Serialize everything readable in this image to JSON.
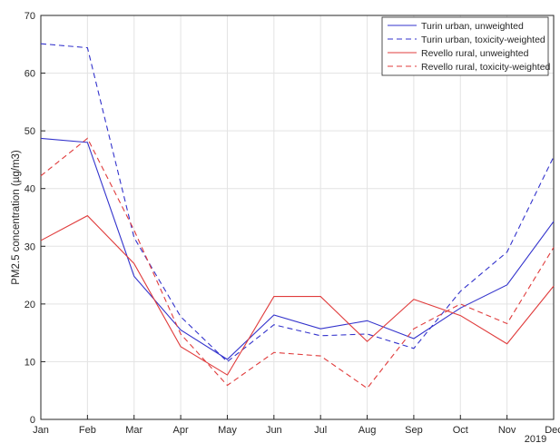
{
  "chart_data": {
    "type": "line",
    "categories": [
      "Jan",
      "Feb",
      "Mar",
      "Apr",
      "May",
      "Jun",
      "Jul",
      "Aug",
      "Sep",
      "Oct",
      "Nov",
      "Dec"
    ],
    "year_label": "2019",
    "ylabel": "PM2.5 concentration (µg/m3)",
    "xlabel": "",
    "ylim": [
      0,
      70
    ],
    "yticks": [
      0,
      10,
      20,
      30,
      40,
      50,
      60,
      70
    ],
    "grid": true,
    "legend_position": "top-right",
    "series": [
      {
        "name": "Turin urban, unweighted",
        "color": "#3333cc",
        "dash": "solid",
        "values": [
          48.7,
          48.0,
          24.8,
          15.5,
          10.4,
          18.1,
          15.7,
          17.1,
          14.0,
          19.3,
          23.3,
          34.3
        ]
      },
      {
        "name": "Turin urban, toxicity-weighted",
        "color": "#3333cc",
        "dash": "dashed",
        "values": [
          65.1,
          64.4,
          31.5,
          17.8,
          10.0,
          16.4,
          14.5,
          14.8,
          12.3,
          22.2,
          29.0,
          45.5
        ]
      },
      {
        "name": "Revello rural, unweighted",
        "color": "#e03c3c",
        "dash": "solid",
        "values": [
          31.0,
          35.3,
          27.0,
          12.6,
          7.7,
          21.3,
          21.3,
          13.5,
          20.8,
          18.0,
          13.1,
          23.1
        ]
      },
      {
        "name": "Revello rural, toxicity-weighted",
        "color": "#e03c3c",
        "dash": "dashed",
        "values": [
          42.2,
          48.7,
          32.8,
          14.8,
          5.9,
          11.6,
          11.0,
          5.4,
          15.7,
          20.0,
          16.6,
          29.8
        ]
      }
    ]
  }
}
